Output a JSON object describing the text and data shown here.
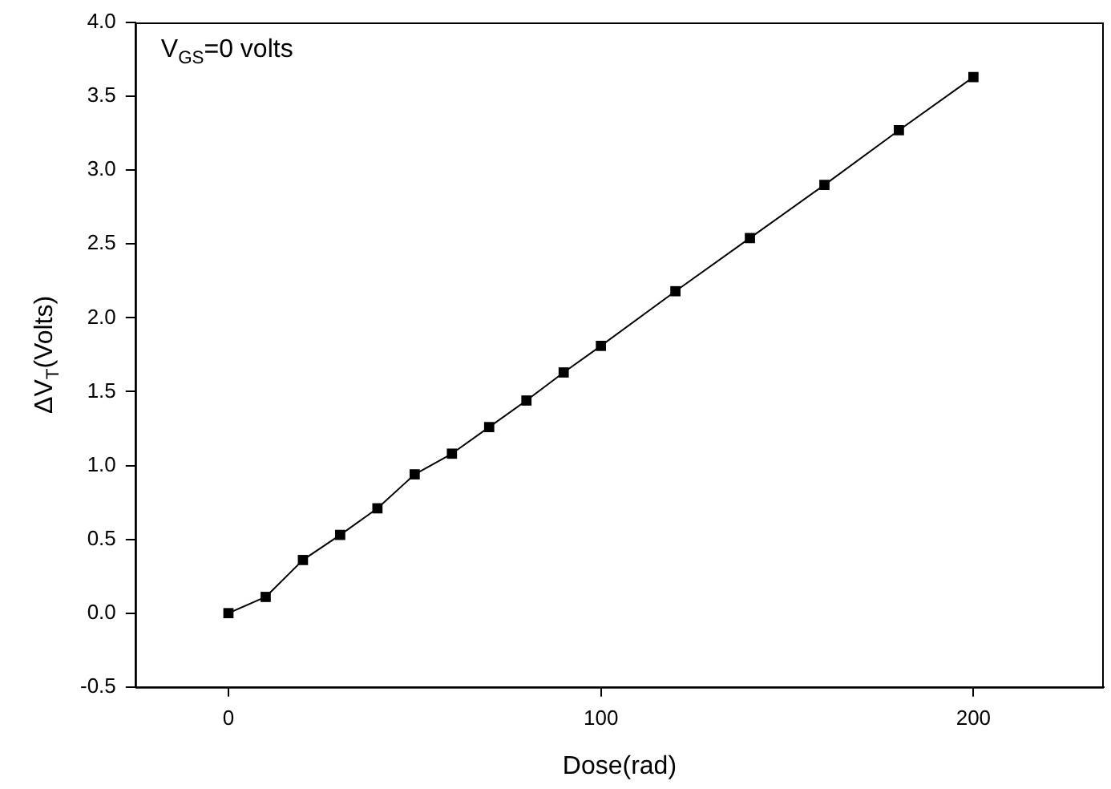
{
  "chart_data": {
    "type": "line",
    "xlabel": "Dose(rad)",
    "ylabel": "ΔV$_{T}$(Volts)",
    "annotations": [
      "V$_{GS}$=0 volts"
    ],
    "x": [
      0,
      10,
      20,
      30,
      40,
      50,
      60,
      70,
      80,
      90,
      100,
      120,
      140,
      160,
      180,
      200
    ],
    "series": [
      {
        "color": "#000000",
        "values": [
          0.0,
          0.11,
          0.36,
          0.53,
          0.71,
          0.94,
          1.08,
          1.26,
          1.44,
          1.63,
          1.81,
          2.18,
          2.54,
          2.9,
          3.27,
          3.63
        ]
      }
    ],
    "xlim": [
      -25,
      235
    ],
    "xticks": [
      0,
      100,
      200
    ],
    "ylim": [
      -0.5,
      4.0
    ],
    "yticks": [
      {
        "value": -0.5,
        "label": "-0.5"
      },
      {
        "value": 0,
        "label": "0.0"
      },
      {
        "value": 0.5,
        "label": "0.5"
      },
      {
        "value": 1,
        "label": "1.0"
      },
      {
        "value": 1.5,
        "label": "1.5"
      },
      {
        "value": 2,
        "label": "2.0"
      },
      {
        "value": 2.5,
        "label": "2.5"
      },
      {
        "value": 3,
        "label": "3.0"
      },
      {
        "value": 3.5,
        "label": "3.5"
      },
      {
        "value": 4,
        "label": "4.0"
      }
    ],
    "grid": false,
    "legend": false,
    "marker": "square",
    "line_style": "solid"
  }
}
